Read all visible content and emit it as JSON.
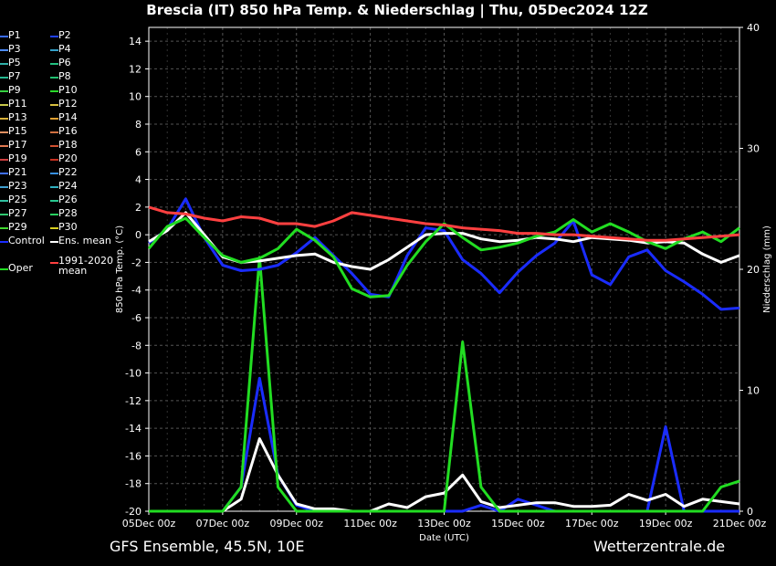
{
  "chart_data": {
    "type": "line",
    "title": "Brescia  (IT)  850 hPa Temp. & Niederschlag | Thu, 05Dec2024 12Z",
    "xlabel": "Date (UTC)",
    "ylabel": "850 hPa Temp. (°C)",
    "y2label": "Niederschlag (mm)",
    "x_ticks": [
      "05Dec 00z",
      "07Dec 00z",
      "09Dec 00z",
      "11Dec 00z",
      "13Dec 00z",
      "15Dec 00z",
      "17Dec 00z",
      "19Dec 00z",
      "21Dec 00z"
    ],
    "x_tick_days": [
      0,
      2,
      4,
      6,
      8,
      10,
      12,
      14,
      16
    ],
    "ylim": [
      -20,
      15
    ],
    "yticks": [
      -20,
      -18,
      -16,
      -14,
      -12,
      -10,
      -8,
      -6,
      -4,
      -2,
      0,
      2,
      4,
      6,
      8,
      10,
      12,
      14
    ],
    "y2lim": [
      0,
      40
    ],
    "y2ticks": [
      0,
      10,
      20,
      30,
      40
    ],
    "grid": true,
    "legend_position": "left",
    "colors": {
      "background": "#000000",
      "grid": "#555555",
      "control": "#1a2cff",
      "ens_mean": "#ffffff",
      "oper": "#22dd22",
      "clim_mean": "#ff4040"
    },
    "legend": [
      {
        "label": "P1",
        "color": "#3a6cff"
      },
      {
        "label": "P2",
        "color": "#2040ff"
      },
      {
        "label": "P3",
        "color": "#4d8cff"
      },
      {
        "label": "P4",
        "color": "#34a0c8"
      },
      {
        "label": "P5",
        "color": "#2fb0a8"
      },
      {
        "label": "P6",
        "color": "#22c080"
      },
      {
        "label": "P7",
        "color": "#26b890"
      },
      {
        "label": "P8",
        "color": "#22c070"
      },
      {
        "label": "P9",
        "color": "#35d040"
      },
      {
        "label": "P10",
        "color": "#2ad82a"
      },
      {
        "label": "P11",
        "color": "#c8c84a"
      },
      {
        "label": "P12",
        "color": "#d8c040"
      },
      {
        "label": "P13",
        "color": "#d8b038"
      },
      {
        "label": "P14",
        "color": "#e0a030"
      },
      {
        "label": "P15",
        "color": "#e09060"
      },
      {
        "label": "P16",
        "color": "#d07040"
      },
      {
        "label": "P17",
        "color": "#e07850"
      },
      {
        "label": "P18",
        "color": "#d05030"
      },
      {
        "label": "P19",
        "color": "#d04040"
      },
      {
        "label": "P20",
        "color": "#c83020"
      },
      {
        "label": "P21",
        "color": "#4070ff"
      },
      {
        "label": "P22",
        "color": "#3890e0"
      },
      {
        "label": "P23",
        "color": "#40a0d0"
      },
      {
        "label": "P24",
        "color": "#30b0c0"
      },
      {
        "label": "P25",
        "color": "#30c0a0"
      },
      {
        "label": "P26",
        "color": "#28c890"
      },
      {
        "label": "P27",
        "color": "#30c870"
      },
      {
        "label": "P28",
        "color": "#28d060"
      },
      {
        "label": "P29",
        "color": "#40d830"
      },
      {
        "label": "P30",
        "color": "#d8d020"
      },
      {
        "label": "Control",
        "color": "#1a2cff"
      },
      {
        "label": "Ens. mean",
        "color": "#ffffff"
      },
      {
        "label": "Oper",
        "color": "#22dd22"
      },
      {
        "label": "1991-2020 mean",
        "color": "#ff4040"
      }
    ],
    "series": [
      {
        "name": "Control",
        "x": [
          0,
          0.5,
          1,
          1.5,
          2,
          2.5,
          3,
          3.5,
          4,
          4.5,
          5,
          5.5,
          6,
          6.5,
          7,
          7.5,
          8,
          8.5,
          9,
          9.5,
          10,
          10.5,
          11,
          11.5,
          12,
          12.5,
          13,
          13.5,
          14,
          14.5,
          15,
          15.5,
          16
        ],
        "values": [
          -0.6,
          0.4,
          2.6,
          -0.2,
          -2.2,
          -2.6,
          -2.5,
          -2.2,
          -1.3,
          -0.2,
          -1.5,
          -2.8,
          -4.3,
          -4.5,
          -1.5,
          0.5,
          0.3,
          -1.8,
          -2.8,
          -4.2,
          -2.7,
          -1.5,
          -0.6,
          1.0,
          -2.9,
          -3.6,
          -1.6,
          -1.1,
          -2.6,
          -3.4,
          -4.3,
          -5.4,
          -5.3
        ]
      },
      {
        "name": "Ens. mean",
        "x": [
          0,
          0.5,
          1,
          1.5,
          2,
          2.5,
          3,
          3.5,
          4,
          4.5,
          5,
          5.5,
          6,
          6.5,
          7,
          7.5,
          8,
          8.5,
          9,
          9.5,
          10,
          10.5,
          11,
          11.5,
          12,
          12.5,
          13,
          13.5,
          14,
          14.5,
          15,
          15.5,
          16
        ],
        "values": [
          -0.5,
          0.3,
          1.6,
          0.0,
          -1.6,
          -2.0,
          -1.9,
          -1.7,
          -1.5,
          -1.4,
          -2.0,
          -2.3,
          -2.5,
          -1.8,
          -0.9,
          0.0,
          0.1,
          0.1,
          -0.3,
          -0.5,
          -0.4,
          -0.2,
          -0.3,
          -0.5,
          -0.2,
          -0.3,
          -0.4,
          -0.6,
          -0.5,
          -0.6,
          -1.4,
          -2.0,
          -1.5
        ]
      },
      {
        "name": "Oper",
        "x": [
          0,
          0.5,
          1,
          1.5,
          2,
          2.5,
          3,
          3.5,
          4,
          4.5,
          5,
          5.5,
          6,
          6.5,
          7,
          7.5,
          8,
          8.5,
          9,
          9.5,
          10,
          10.5,
          11,
          11.5,
          12,
          12.5,
          13,
          13.5,
          14,
          14.5,
          15,
          15.5,
          16
        ],
        "values": [
          -1.0,
          0.6,
          1.2,
          -0.2,
          -1.5,
          -2.0,
          -1.7,
          -1.0,
          0.4,
          -0.4,
          -1.6,
          -3.9,
          -4.5,
          -4.4,
          -2.2,
          -0.5,
          0.8,
          -0.2,
          -1.1,
          -0.9,
          -0.6,
          -0.1,
          0.2,
          1.1,
          0.2,
          0.8,
          0.2,
          -0.5,
          -1.0,
          -0.3,
          0.2,
          -0.5,
          0.5
        ]
      },
      {
        "name": "1991-2020 mean",
        "x": [
          0,
          0.5,
          1,
          1.5,
          2,
          2.5,
          3,
          3.5,
          4,
          4.5,
          5,
          5.5,
          6,
          6.5,
          7,
          7.5,
          8,
          8.5,
          9,
          9.5,
          10,
          10.5,
          11,
          11.5,
          12,
          12.5,
          13,
          13.5,
          14,
          14.5,
          15,
          15.5,
          16
        ],
        "values": [
          2.0,
          1.6,
          1.5,
          1.2,
          1.0,
          1.3,
          1.2,
          0.8,
          0.8,
          0.6,
          1.0,
          1.6,
          1.4,
          1.2,
          1.0,
          0.8,
          0.7,
          0.5,
          0.4,
          0.3,
          0.1,
          0.1,
          0.0,
          0.0,
          -0.1,
          -0.2,
          -0.3,
          -0.4,
          -0.4,
          -0.3,
          -0.2,
          -0.1,
          0.0
        ]
      }
    ],
    "precip_series": [
      {
        "name": "Control",
        "x": [
          0,
          1,
          2,
          2.5,
          3,
          3.5,
          4,
          4.5,
          5,
          5.5,
          6,
          7,
          8,
          8.5,
          9,
          9.5,
          10,
          11,
          12,
          12.5,
          13,
          13.5,
          14,
          14.5,
          15,
          15.5,
          16
        ],
        "values": [
          0,
          0,
          0,
          2,
          11,
          3,
          0.5,
          0,
          0,
          0,
          0,
          0,
          0,
          0,
          0.5,
          0,
          1,
          0,
          0,
          0,
          0,
          0,
          7,
          0,
          0,
          0,
          0
        ]
      },
      {
        "name": "Ens. mean",
        "x": [
          0,
          1,
          2,
          2.5,
          3,
          3.5,
          4,
          4.5,
          5,
          5.5,
          6,
          6.5,
          7,
          7.5,
          8,
          8.5,
          9,
          9.5,
          10,
          10.5,
          11,
          11.5,
          12,
          12.5,
          13,
          13.5,
          14,
          14.5,
          15,
          15.5,
          16
        ],
        "values": [
          0,
          0,
          0,
          1,
          6,
          3,
          0.6,
          0.2,
          0.2,
          0,
          0,
          0.6,
          0.3,
          1.2,
          1.5,
          3,
          0.8,
          0.3,
          0.5,
          0.7,
          0.7,
          0.4,
          0.4,
          0.5,
          1.4,
          0.9,
          1.4,
          0.4,
          1.0,
          0.8,
          0.6
        ]
      },
      {
        "name": "Oper",
        "x": [
          0,
          1,
          2,
          2.5,
          3,
          3.5,
          4,
          4.5,
          5,
          5.5,
          6,
          7,
          8,
          8.5,
          9,
          9.5,
          10,
          11,
          12,
          13,
          14,
          15,
          15.5,
          16
        ],
        "values": [
          0,
          0,
          0,
          2,
          21,
          2,
          0,
          0,
          0,
          0,
          0,
          0,
          0,
          14,
          2,
          0,
          0,
          0,
          0,
          0,
          0,
          0,
          2,
          2.5
        ]
      }
    ]
  },
  "footer": {
    "left": "GFS Ensemble, 45.5N, 10E",
    "right": "Wetterzentrale.de"
  }
}
